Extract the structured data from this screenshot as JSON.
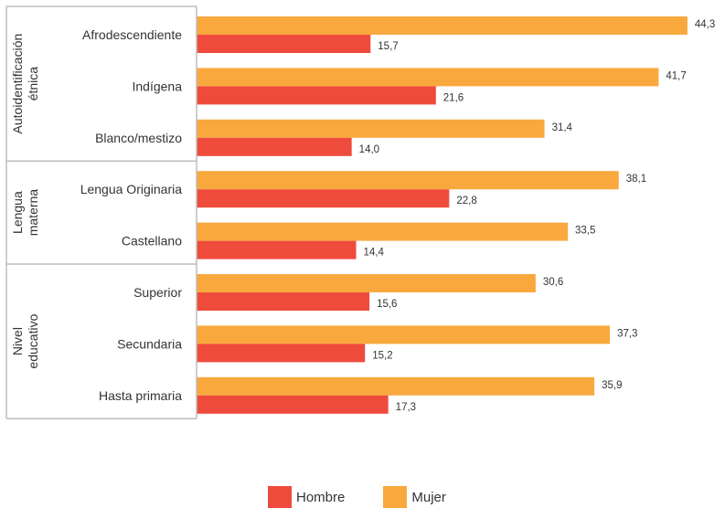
{
  "chart_data": {
    "type": "bar",
    "orientation": "horizontal",
    "groups": [
      {
        "label": "Autoidentificación étnica",
        "categories": [
          "Afrodescendiente",
          "Indígena",
          "Blanco/mestizo"
        ]
      },
      {
        "label": "Lengua materna",
        "categories": [
          "Lengua Originaria",
          "Castellano"
        ]
      },
      {
        "label": "Nivel educativo",
        "categories": [
          "Superior",
          "Secundaria",
          "Hasta primaria"
        ]
      }
    ],
    "categories": [
      "Afrodescendiente",
      "Indígena",
      "Blanco/mestizo",
      "Lengua Originaria",
      "Castellano",
      "Superior",
      "Secundaria",
      "Hasta primaria"
    ],
    "series": [
      {
        "name": "Mujer",
        "color": "#F9A83E",
        "values": [
          44.3,
          41.7,
          31.4,
          38.1,
          33.5,
          30.6,
          37.3,
          35.9
        ],
        "labels": [
          "44,3",
          "41,7",
          "31,4",
          "38,1",
          "33,5",
          "30,6",
          "37,3",
          "35,9"
        ]
      },
      {
        "name": "Hombre",
        "color": "#EF4B3C",
        "values": [
          15.7,
          21.6,
          14.0,
          22.8,
          14.4,
          15.6,
          15.2,
          17.3
        ],
        "labels": [
          "15,7",
          "21,6",
          "14,0",
          "22,8",
          "14,4",
          "15,6",
          "15,2",
          "17,3"
        ]
      }
    ],
    "xlim": [
      0,
      45
    ],
    "grid": false,
    "legend_position": "bottom"
  },
  "legend": {
    "hombre": "Hombre",
    "mujer": "Mujer",
    "hombre_color": "#EF4B3C",
    "mujer_color": "#F9A83E"
  }
}
